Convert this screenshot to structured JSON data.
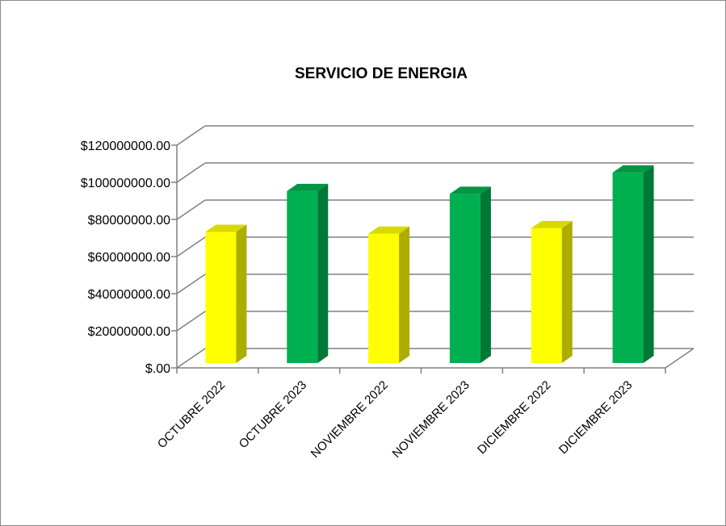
{
  "chart_data": {
    "type": "bar",
    "title": "SERVICIO DE ENERGIA",
    "categories": [
      "OCTUBRE 2022",
      "OCTUBRE 2023",
      "NOVIEMBRE 2022",
      "NOVIEMBRE 2023",
      "DICIEMBRE 2022",
      "DICIEMBRE 2023"
    ],
    "values": [
      75000000,
      97000000,
      74000000,
      95500000,
      77000000,
      107000000
    ],
    "bar_colors": [
      "#ffff00",
      "#00b050",
      "#ffff00",
      "#00b050",
      "#ffff00",
      "#00b050"
    ],
    "ylim": [
      0,
      120000000
    ],
    "yticks": [
      0,
      20000000,
      40000000,
      60000000,
      80000000,
      100000000,
      120000000
    ],
    "ytick_labels": [
      "$.00",
      "$20000000.00",
      "$40000000.00",
      "$60000000.00",
      "$80000000.00",
      "$100000000.00",
      "$120000000.00"
    ],
    "grid": true,
    "legend": "none",
    "style": "3d-column"
  }
}
